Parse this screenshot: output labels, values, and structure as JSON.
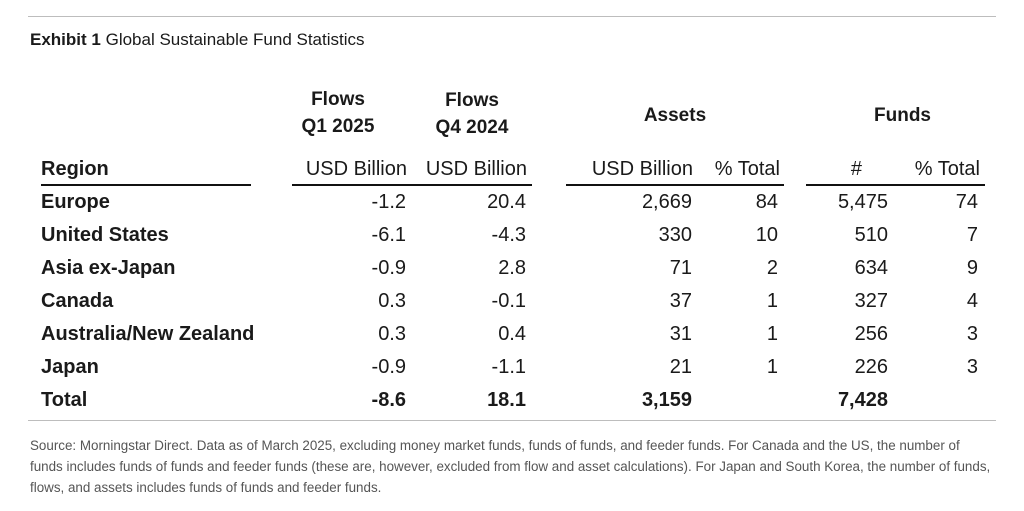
{
  "exhibit": {
    "label": "Exhibit 1",
    "title": "Global Sustainable Fund Statistics"
  },
  "headers": {
    "flows_q1": [
      "Flows",
      "Q1 2025"
    ],
    "flows_q4": [
      "Flows",
      "Q4 2024"
    ],
    "assets": "Assets",
    "funds": "Funds"
  },
  "subheaders": {
    "region": "Region",
    "flows_q1_unit": "USD Billion",
    "flows_q4_unit": "USD Billion",
    "assets_unit": "USD Billion",
    "assets_pct": "% Total",
    "funds_count": "#",
    "funds_pct": "% Total"
  },
  "rows": [
    {
      "region": "Europe",
      "flows_q1": "-1.2",
      "flows_q4": "20.4",
      "assets": "2,669",
      "assets_pct": "84",
      "funds": "5,475",
      "funds_pct": "74"
    },
    {
      "region": "United States",
      "flows_q1": "-6.1",
      "flows_q4": "-4.3",
      "assets": "330",
      "assets_pct": "10",
      "funds": "510",
      "funds_pct": "7"
    },
    {
      "region": "Asia ex-Japan",
      "flows_q1": "-0.9",
      "flows_q4": "2.8",
      "assets": "71",
      "assets_pct": "2",
      "funds": "634",
      "funds_pct": "9"
    },
    {
      "region": "Canada",
      "flows_q1": "0.3",
      "flows_q4": "-0.1",
      "assets": "37",
      "assets_pct": "1",
      "funds": "327",
      "funds_pct": "4"
    },
    {
      "region": "Australia/New Zealand",
      "flows_q1": "0.3",
      "flows_q4": "0.4",
      "assets": "31",
      "assets_pct": "1",
      "funds": "256",
      "funds_pct": "3"
    },
    {
      "region": "Japan",
      "flows_q1": "-0.9",
      "flows_q4": "-1.1",
      "assets": "21",
      "assets_pct": "1",
      "funds": "226",
      "funds_pct": "3"
    }
  ],
  "total": {
    "region": "Total",
    "flows_q1": "-8.6",
    "flows_q4": "18.1",
    "assets": "3,159",
    "funds": "7,428"
  },
  "footnote": "Source: Morningstar Direct. Data as of March 2025, excluding money market funds, funds of funds, and feeder funds. For Canada and the US, the number of funds includes funds of funds and feeder funds (these are, however, excluded from flow and asset calculations). For Japan and South Korea, the number of funds, flows, and assets includes funds of funds and feeder funds."
}
